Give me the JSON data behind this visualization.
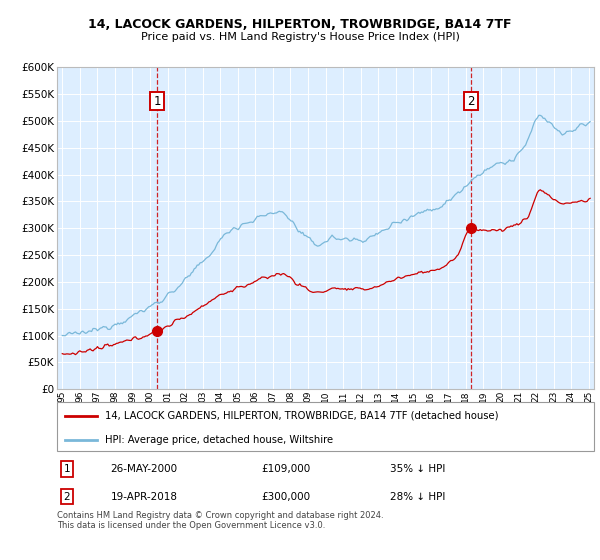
{
  "title": "14, LACOCK GARDENS, HILPERTON, TROWBRIDGE, BA14 7TF",
  "subtitle": "Price paid vs. HM Land Registry's House Price Index (HPI)",
  "ylim": [
    0,
    600000
  ],
  "yticks": [
    0,
    50000,
    100000,
    150000,
    200000,
    250000,
    300000,
    350000,
    400000,
    450000,
    500000,
    550000,
    600000
  ],
  "hpi_color": "#7ab8d9",
  "price_color": "#cc0000",
  "bg_color": "#ddeeff",
  "marker1_x": 2000.4,
  "marker2_x": 2018.3,
  "marker1_price": 109000,
  "marker2_price": 300000,
  "vline1_label": "1",
  "vline2_label": "2",
  "legend_label1": "14, LACOCK GARDENS, HILPERTON, TROWBRIDGE, BA14 7TF (detached house)",
  "legend_label2": "HPI: Average price, detached house, Wiltshire",
  "note1_num": "1",
  "note1_date": "26-MAY-2000",
  "note1_price": "£109,000",
  "note1_hpi": "35% ↓ HPI",
  "note2_num": "2",
  "note2_date": "19-APR-2018",
  "note2_price": "£300,000",
  "note2_hpi": "28% ↓ HPI",
  "footer": "Contains HM Land Registry data © Crown copyright and database right 2024.\nThis data is licensed under the Open Government Licence v3.0.",
  "title_fontsize": 9,
  "subtitle_fontsize": 8
}
